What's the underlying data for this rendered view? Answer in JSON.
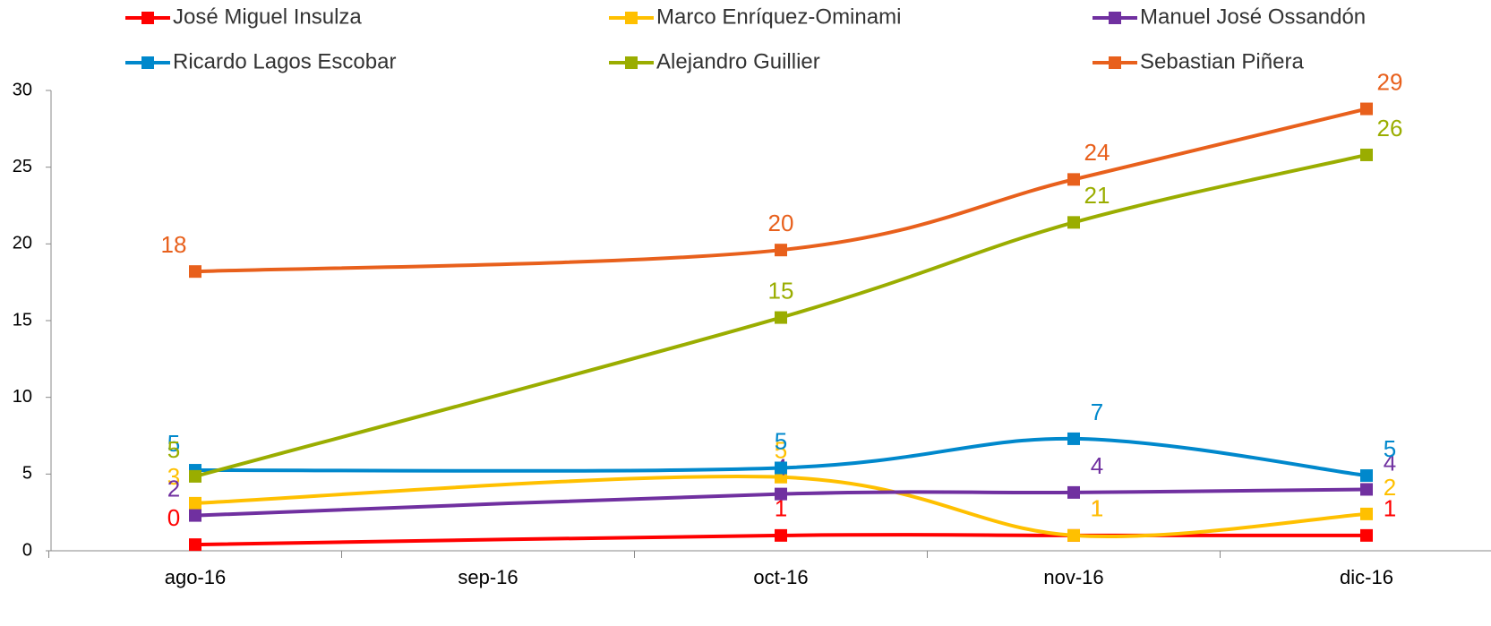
{
  "chart_data": {
    "type": "line",
    "xticks": [
      "ago-16",
      "sep-16",
      "oct-16",
      "nov-16",
      "dic-16"
    ],
    "x": [
      "ago-16",
      "oct-16",
      "nov-16",
      "dic-16"
    ],
    "ylim": [
      0,
      30
    ],
    "yticks": [
      0,
      5,
      10,
      15,
      20,
      25,
      30
    ],
    "smooth": true,
    "legend": "top",
    "series": [
      {
        "name": "José Miguel Insulza",
        "color": "#ff0000",
        "values": [
          0.4,
          1.0,
          1.0,
          1.0
        ],
        "value_labels": [
          "0",
          "1",
          "1",
          "1"
        ]
      },
      {
        "name": "Marco Enríquez-Ominami",
        "color": "#ffc000",
        "values": [
          3.1,
          4.8,
          1.0,
          2.4
        ],
        "value_labels": [
          "3",
          "5",
          "1",
          "2"
        ]
      },
      {
        "name": "Manuel José Ossandón",
        "color": "#7030a0",
        "values": [
          2.3,
          3.7,
          3.8,
          4.0
        ],
        "value_labels": [
          "2",
          "4",
          "4",
          "4"
        ]
      },
      {
        "name": "Ricardo Lagos Escobar",
        "color": "#0088cc",
        "values": [
          5.25,
          5.4,
          7.3,
          4.9
        ],
        "value_labels": [
          "5",
          "5",
          "7",
          "5"
        ]
      },
      {
        "name": "Alejandro Guillier",
        "color": "#9aad00",
        "values": [
          4.85,
          15.2,
          21.4,
          25.8
        ],
        "value_labels": [
          "5",
          "15",
          "21",
          "26"
        ]
      },
      {
        "name": "Sebastian Piñera",
        "color": "#e8601c",
        "values": [
          18.2,
          19.6,
          24.2,
          28.8
        ],
        "value_labels": [
          "18",
          "20",
          "24",
          "29"
        ]
      }
    ]
  }
}
